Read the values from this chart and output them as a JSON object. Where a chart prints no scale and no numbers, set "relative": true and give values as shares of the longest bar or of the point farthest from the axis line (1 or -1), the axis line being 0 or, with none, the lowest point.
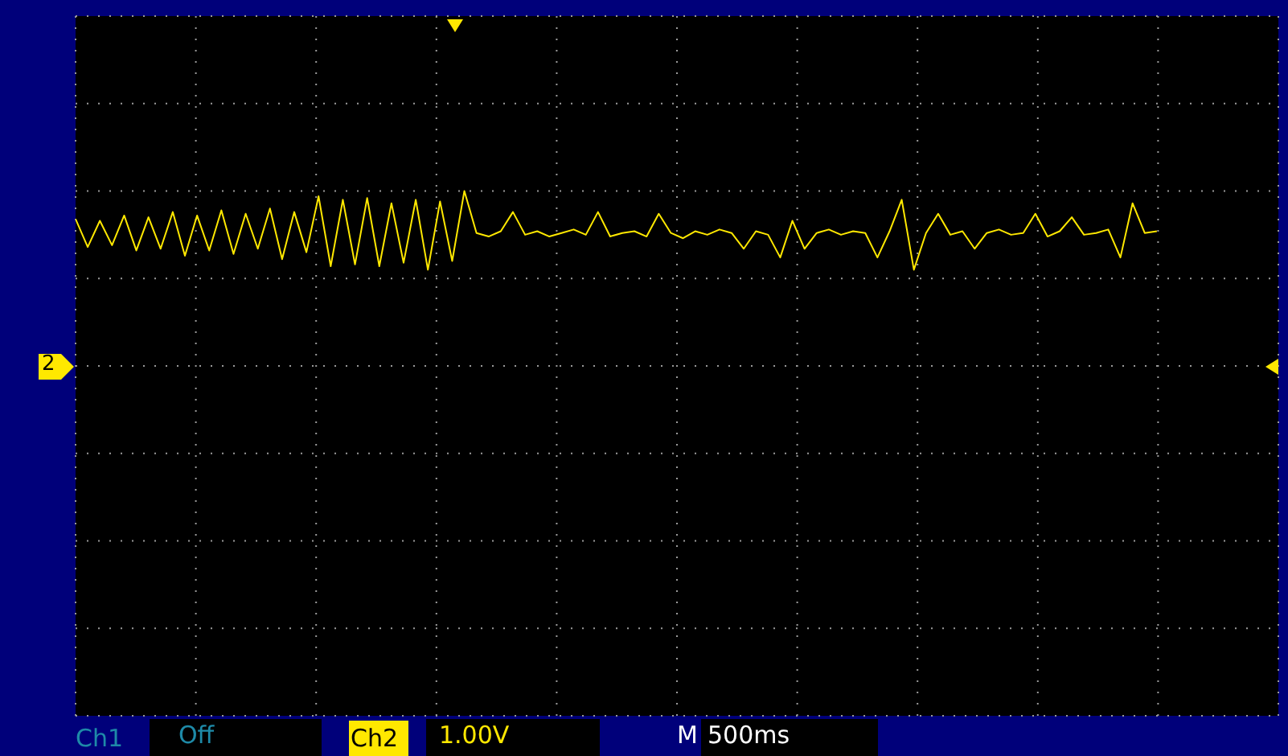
{
  "chart_data": {
    "type": "line",
    "relative": true,
    "grid": true,
    "marker": "none",
    "line_style": "solid",
    "categories": [
      null,
      null,
      null,
      null,
      null,
      null,
      null,
      null,
      null,
      null,
      null,
      null,
      null,
      null,
      null,
      null,
      null,
      null,
      null,
      null,
      null,
      null,
      null,
      null,
      null,
      null,
      null,
      null,
      null,
      null,
      null,
      null,
      null,
      null,
      null,
      null,
      null,
      null,
      null,
      null,
      null,
      null,
      null,
      null,
      null,
      null,
      null,
      null,
      null,
      null,
      null,
      null,
      null,
      null,
      null,
      null,
      null,
      null,
      null,
      null,
      null,
      null,
      null,
      null,
      null,
      null,
      null,
      null,
      null,
      null,
      null,
      null,
      null,
      null,
      null,
      null,
      null,
      null,
      null,
      null,
      null,
      null,
      null,
      null,
      null,
      null,
      null,
      null,
      null,
      null,
      null,
      null,
      null,
      null,
      null,
      null,
      null,
      null,
      null,
      null
    ],
    "series": [
      {
        "color": "#ffe800",
        "values": [
          0.84,
          0.68,
          0.83,
          0.69,
          0.86,
          0.66,
          0.85,
          0.67,
          0.88,
          0.63,
          0.86,
          0.66,
          0.89,
          0.64,
          0.87,
          0.67,
          0.9,
          0.61,
          0.88,
          0.65,
          0.97,
          0.57,
          0.95,
          0.58,
          0.96,
          0.57,
          0.93,
          0.59,
          0.95,
          0.55,
          0.94,
          0.6,
          1.0,
          0.76,
          0.74,
          0.77,
          0.88,
          0.75,
          0.77,
          0.74,
          0.76,
          0.78,
          0.75,
          0.88,
          0.74,
          0.76,
          0.77,
          0.74,
          0.87,
          0.76,
          0.73,
          0.77,
          0.75,
          0.78,
          0.76,
          0.67,
          0.77,
          0.75,
          0.62,
          0.83,
          0.67,
          0.76,
          0.78,
          0.75,
          0.77,
          0.76,
          0.62,
          0.77,
          0.95,
          0.55,
          0.76,
          0.87,
          0.75,
          0.77,
          0.67,
          0.76,
          0.78,
          0.75,
          0.76,
          0.87,
          0.74,
          0.77,
          0.85,
          0.75,
          0.76,
          0.78,
          0.62,
          0.93,
          0.76,
          0.77,
          null,
          null,
          null,
          null,
          null,
          null,
          null,
          null,
          null,
          null
        ]
      }
    ],
    "annotations": [
      "2",
      "Ch1",
      "Off",
      "Ch2",
      "1.00V",
      "M",
      "500ms"
    ]
  }
}
